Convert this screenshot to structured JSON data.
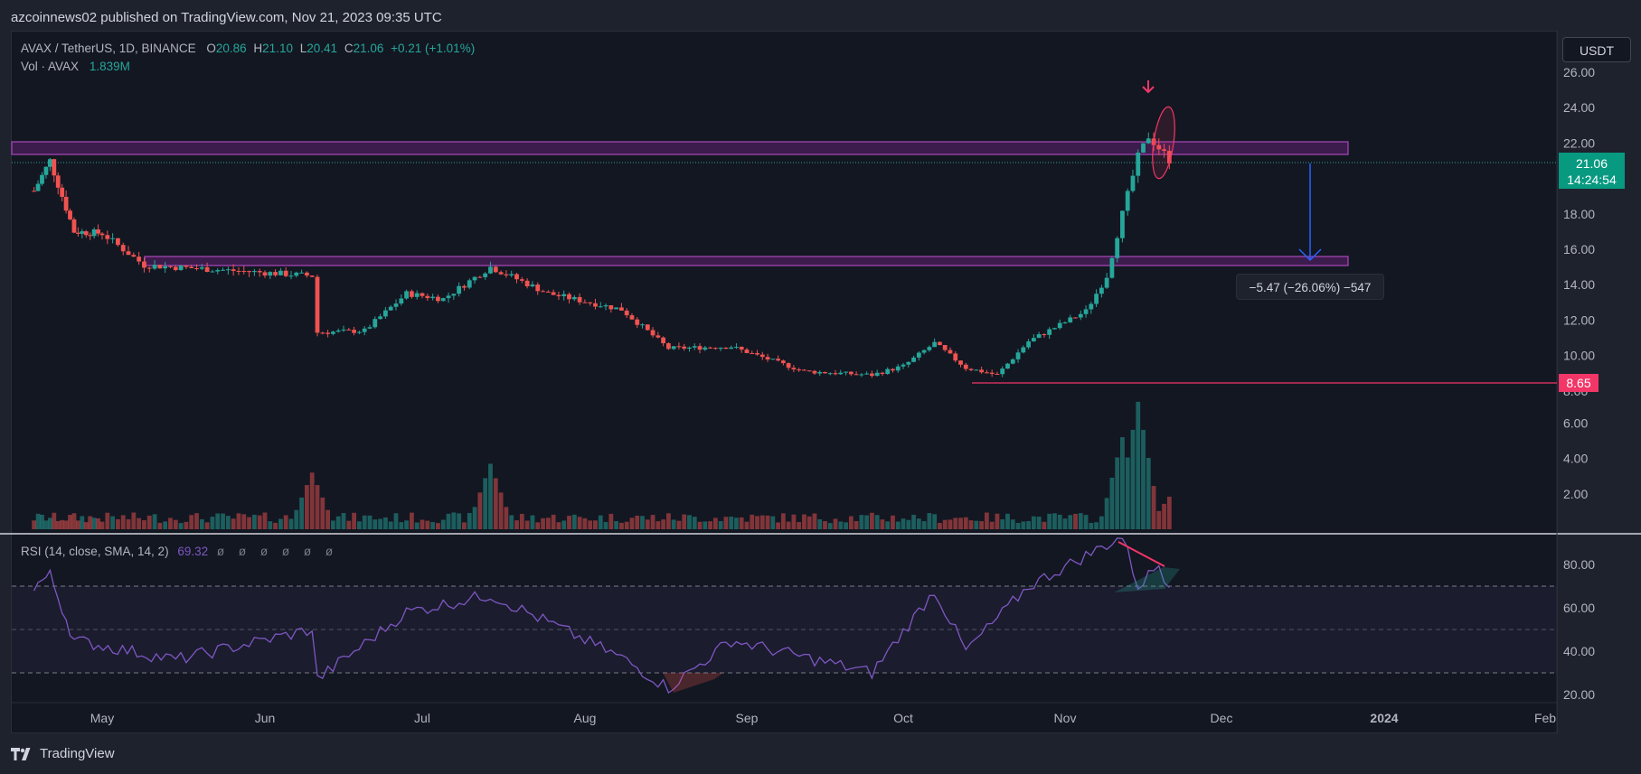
{
  "header": {
    "published": "azcoinnews02 published on TradingView.com, Nov 21, 2023 09:35 UTC"
  },
  "legend": {
    "symbol": "AVAX / TetherUS, 1D, BINANCE",
    "o_label": "O",
    "o": "20.86",
    "h_label": "H",
    "h": "21.10",
    "l_label": "L",
    "l": "20.41",
    "c_label": "C",
    "c": "21.06",
    "change": "+0.21 (+1.01%)",
    "vol_label": "Vol · AVAX",
    "vol": "1.839M",
    "rsi_label": "RSI (14, close, SMA, 14, 2)",
    "rsi": "69.32",
    "rsi_empty": "ø ø ø ø ø ø"
  },
  "currency_button": "USDT",
  "price_tag": {
    "price": "21.06",
    "countdown": "14:24:54"
  },
  "low_tag": "8.65",
  "measure_label": "−5.47 (−26.06%) −547",
  "footer": {
    "brand": "TradingView"
  },
  "colors": {
    "up": "#26a69a",
    "down": "#ef5350",
    "zone": "#9c27b0",
    "rsi": "#7e57c2",
    "arrow": "#2962ff",
    "accent": "#f23667",
    "tag": "#089981"
  },
  "chart_data": {
    "type": "candlestick",
    "title": "AVAX / TetherUS, 1D, BINANCE",
    "price_axis": {
      "ticks": [
        "26.00",
        "24.00",
        "22.00",
        "20.00",
        "18.00",
        "16.00",
        "14.00",
        "12.00",
        "10.00",
        "8.00"
      ],
      "range": [
        8,
        26
      ]
    },
    "volume_axis": {
      "ticks": [
        "6.00",
        "4.00",
        "2.00"
      ]
    },
    "rsi_axis": {
      "ticks": [
        "80.00",
        "60.00",
        "40.00",
        "20.00"
      ],
      "bands": [
        30,
        50,
        70
      ]
    },
    "x_axis": {
      "ticks": [
        "May",
        "Jun",
        "Jul",
        "Aug",
        "Sep",
        "Oct",
        "Nov",
        "Dec",
        "2024",
        "Feb"
      ]
    },
    "close_path": [
      {
        "date": "Apr 14",
        "close": 19.3
      },
      {
        "date": "Apr 18",
        "close": 21.0
      },
      {
        "date": "Apr 24",
        "close": 17.0
      },
      {
        "date": "May 1",
        "close": 16.9
      },
      {
        "date": "May 9",
        "close": 15.1
      },
      {
        "date": "May 20",
        "close": 14.9
      },
      {
        "date": "May 31",
        "close": 14.7
      },
      {
        "date": "Jun 10",
        "close": 14.5
      },
      {
        "date": "Jun 11",
        "close": 11.3
      },
      {
        "date": "Jun 20",
        "close": 11.4
      },
      {
        "date": "Jun 28",
        "close": 13.5
      },
      {
        "date": "Jul 5",
        "close": 13.2
      },
      {
        "date": "Jul 14",
        "close": 15.0
      },
      {
        "date": "Jul 25",
        "close": 13.5
      },
      {
        "date": "Aug 8",
        "close": 12.6
      },
      {
        "date": "Aug 17",
        "close": 10.4
      },
      {
        "date": "Aug 29",
        "close": 10.5
      },
      {
        "date": "Sep 12",
        "close": 9.1
      },
      {
        "date": "Sep 25",
        "close": 8.9
      },
      {
        "date": "Oct 1",
        "close": 9.4
      },
      {
        "date": "Oct 7",
        "close": 10.7
      },
      {
        "date": "Oct 13",
        "close": 9.3
      },
      {
        "date": "Oct 19",
        "close": 8.9
      },
      {
        "date": "Oct 25",
        "close": 10.8
      },
      {
        "date": "Nov 5",
        "close": 12.5
      },
      {
        "date": "Nov 9",
        "close": 14.5
      },
      {
        "date": "Nov 12",
        "close": 18.0
      },
      {
        "date": "Nov 15",
        "close": 21.2
      },
      {
        "date": "Nov 17",
        "close": 22.4
      },
      {
        "date": "Nov 21",
        "close": 21.06
      }
    ],
    "zones": [
      {
        "name": "resistance",
        "low": 21.0,
        "high": 21.9
      },
      {
        "name": "support",
        "low": 15.2,
        "high": 15.8
      }
    ],
    "low_line": 8.65,
    "volume": [
      {
        "date": "Jun 10",
        "value": 3.2
      },
      {
        "date": "Jul 14",
        "value": 3.7
      },
      {
        "date": "Nov 12",
        "value": 5.2
      },
      {
        "date": "Nov 15",
        "value": 7.2
      },
      {
        "date": "Nov 21",
        "value": 1.84
      }
    ],
    "rsi": [
      {
        "date": "Apr 14",
        "value": 70
      },
      {
        "date": "Apr 18",
        "value": 75
      },
      {
        "date": "Apr 24",
        "value": 45
      },
      {
        "date": "May 15",
        "value": 36
      },
      {
        "date": "Jun 10",
        "value": 50
      },
      {
        "date": "Jun 11",
        "value": 27
      },
      {
        "date": "Jun 28",
        "value": 58
      },
      {
        "date": "Jul 14",
        "value": 66
      },
      {
        "date": "Aug 8",
        "value": 37
      },
      {
        "date": "Aug 17",
        "value": 23
      },
      {
        "date": "Aug 29",
        "value": 45
      },
      {
        "date": "Sep 25",
        "value": 30
      },
      {
        "date": "Oct 7",
        "value": 68
      },
      {
        "date": "Oct 13",
        "value": 40
      },
      {
        "date": "Oct 25",
        "value": 70
      },
      {
        "date": "Nov 12",
        "value": 93
      },
      {
        "date": "Nov 15",
        "value": 70
      },
      {
        "date": "Nov 19",
        "value": 80
      },
      {
        "date": "Nov 21",
        "value": 69.32
      }
    ]
  }
}
